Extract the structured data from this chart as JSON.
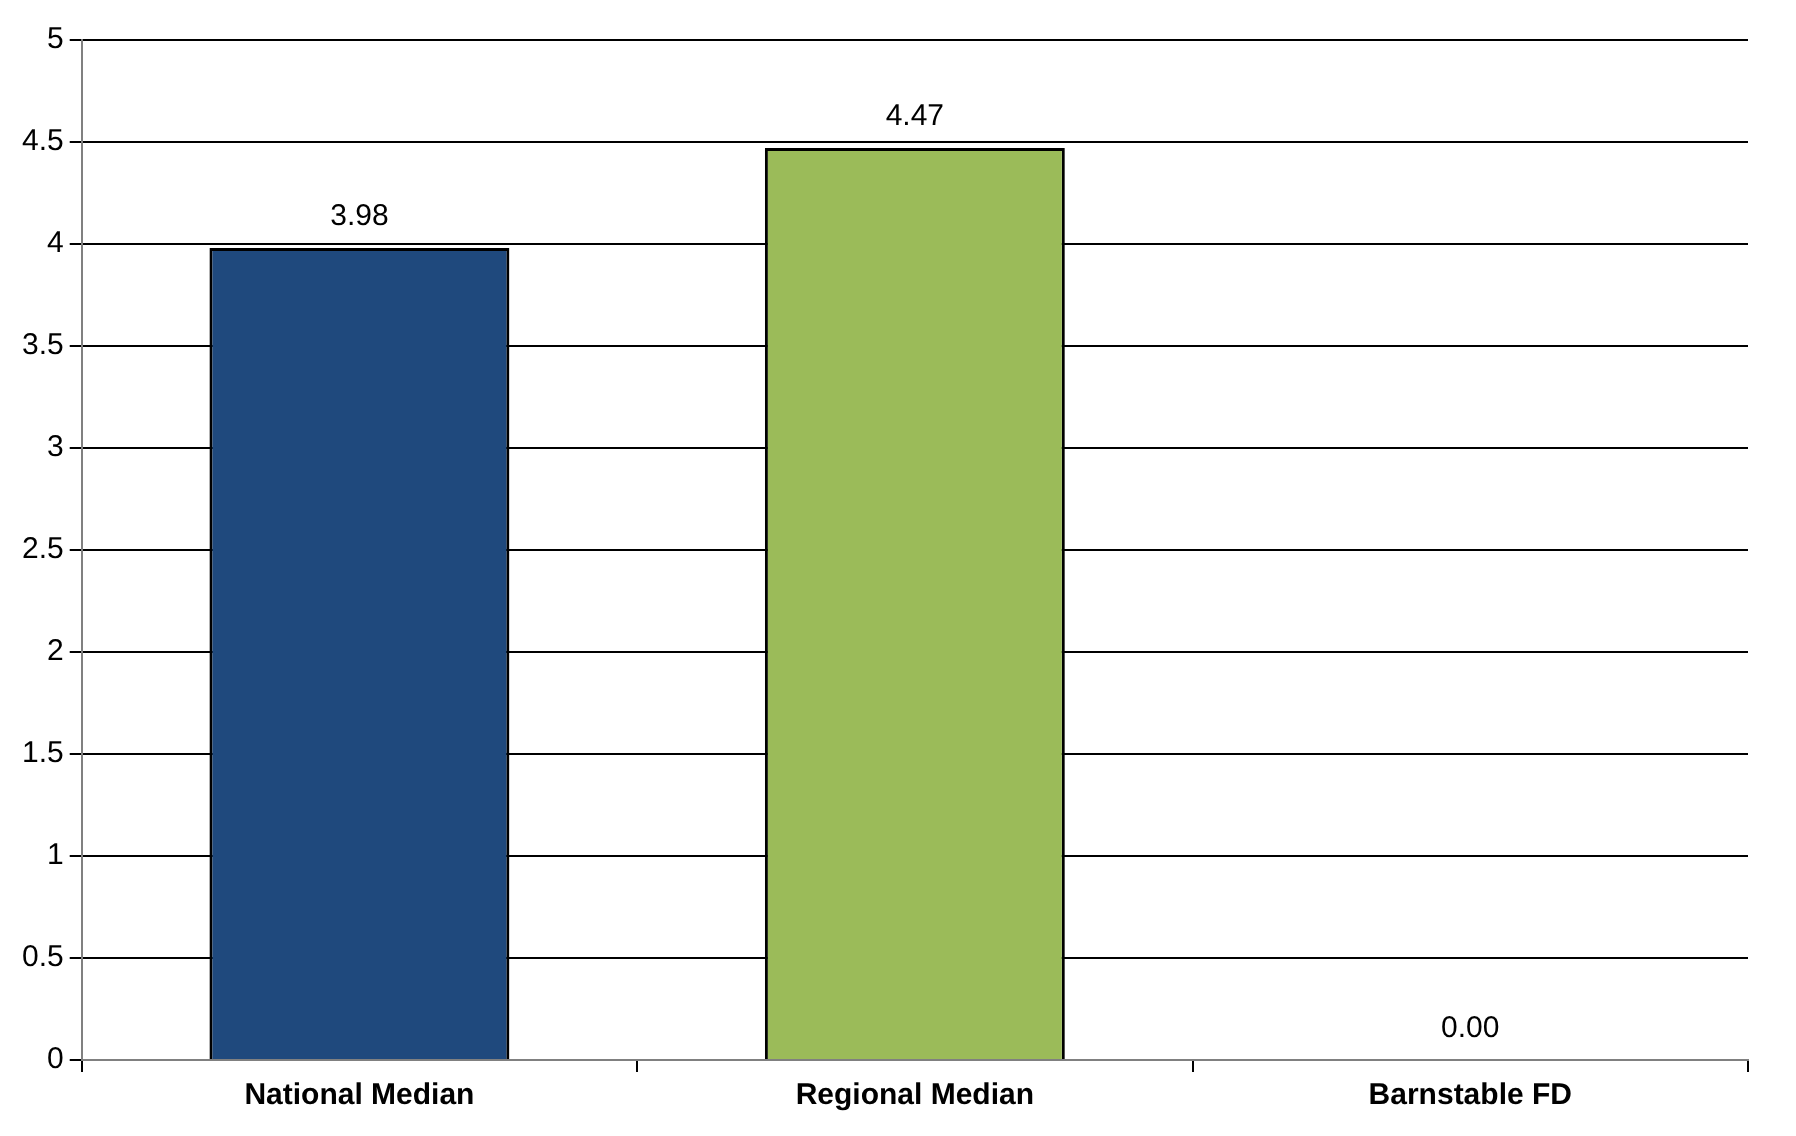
{
  "chart_data": {
    "type": "bar",
    "categories": [
      "National Median",
      "Regional Median",
      "Barnstable FD"
    ],
    "values": [
      3.98,
      4.47,
      0
    ],
    "colors": [
      "#1f497d",
      "#9bbb59",
      "#c0504d"
    ],
    "value_labels": [
      "3.98",
      "4.47",
      "0.00"
    ],
    "ylim": [
      0,
      5
    ],
    "yticks": [
      0,
      0.5,
      1,
      1.5,
      2,
      2.5,
      3,
      3.5,
      4,
      4.5,
      5
    ],
    "grid": "y",
    "legend": false
  }
}
